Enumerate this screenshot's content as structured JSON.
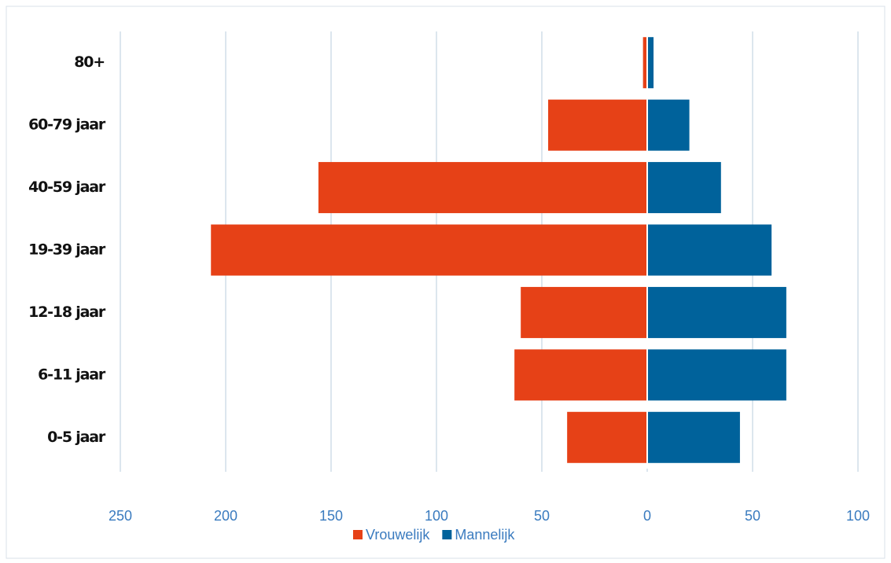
{
  "chart_data": {
    "type": "bar",
    "orientation": "horizontal",
    "stacked": true,
    "categories": [
      "0-5 jaar",
      "6-11 jaar",
      "12-18 jaar",
      "19-39 jaar",
      "40-59 jaar",
      "60-79 jaar",
      "80+"
    ],
    "series": [
      {
        "name": "Vrouwelijk",
        "color": "#e64117",
        "values": [
          -38,
          -63,
          -60,
          -207,
          -156,
          -47,
          -2
        ]
      },
      {
        "name": "Mannelijk",
        "color": "#00629b",
        "values": [
          44,
          66,
          66,
          59,
          35,
          20,
          3
        ]
      }
    ],
    "xlim": [
      -250,
      100
    ],
    "xticks": [
      {
        "value": -250,
        "label": "250"
      },
      {
        "value": -200,
        "label": "200"
      },
      {
        "value": -150,
        "label": "150"
      },
      {
        "value": -100,
        "label": "100"
      },
      {
        "value": -50,
        "label": "50"
      },
      0,
      50,
      100
    ],
    "grid": true,
    "legend": "bottom"
  }
}
